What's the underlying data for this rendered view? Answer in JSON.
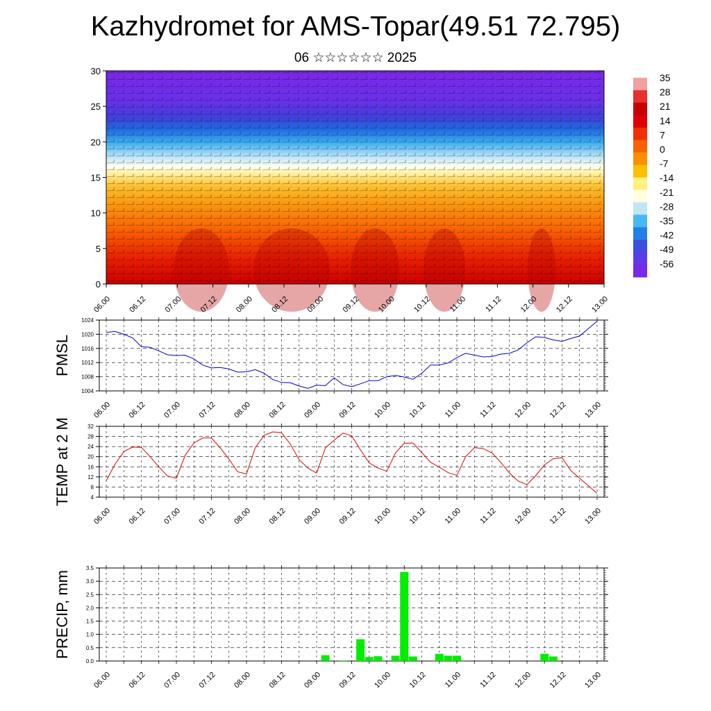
{
  "title": "Kazhydromet for AMS-Topar(49.51 72.795)",
  "subtitle": "06 ☆☆☆☆☆☆ 2025",
  "chart_data": [
    {
      "type": "heatmap",
      "description_of_fill": "temperature cross-section with wind barbs",
      "y_ticks": [
        "0",
        "5",
        "10",
        "15",
        "20",
        "25",
        "30"
      ],
      "ylim": [
        0,
        30
      ],
      "x_ticks": [
        "06.00",
        "06.12",
        "07.00",
        "07.12",
        "08.00",
        "08.12",
        "09.00",
        "09.12",
        "10.00",
        "10.12",
        "11.00",
        "11.12",
        "12.00",
        "12.12",
        "13.00"
      ],
      "colorbar_labels": [
        "35",
        "28",
        "21",
        "14",
        "7",
        "0",
        "-7",
        "-14",
        "-21",
        "-28",
        "-35",
        "-42",
        "-49",
        "-56"
      ],
      "colorbar_colors": [
        "#f0a0a0",
        "#e83030",
        "#c80000",
        "#e00000",
        "#f03000",
        "#f86000",
        "#fa9000",
        "#fcc000",
        "#fff080",
        "#ffffe0",
        "#bfe6f5",
        "#48b8f0",
        "#2080e8",
        "#3c50e0",
        "#5a3ce8",
        "#7828e8"
      ]
    },
    {
      "type": "line",
      "ylabel": "PMSL",
      "ylim": [
        1004,
        1024
      ],
      "y_ticks": [
        "1004",
        "1008",
        "1012",
        "1016",
        "1020",
        "1024"
      ],
      "x_ticks": [
        "06.00",
        "06.12",
        "07.00",
        "07.12",
        "08.00",
        "08.12",
        "09.00",
        "09.12",
        "10.00",
        "10.12",
        "11.00",
        "11.12",
        "12.00",
        "12.12",
        "13.00"
      ],
      "color": "#0000cc",
      "x": [
        0,
        3,
        6,
        9,
        12,
        15,
        18,
        21,
        24,
        27,
        30,
        33,
        36,
        39,
        42,
        45,
        48,
        51,
        54,
        57,
        60,
        63,
        66,
        69,
        72,
        75,
        78,
        81,
        84,
        87,
        90,
        93,
        96,
        99,
        102,
        105,
        108,
        111,
        114,
        117,
        120,
        123,
        126,
        129,
        132,
        135,
        138,
        141,
        144,
        147,
        150,
        153,
        156,
        159,
        162,
        165,
        168
      ],
      "values": [
        1020.5,
        1020.8,
        1020,
        1019,
        1016.5,
        1016.3,
        1015.3,
        1014.2,
        1014,
        1014.1,
        1013,
        1011.3,
        1010.5,
        1010.6,
        1010.2,
        1009.3,
        1009.4,
        1010,
        1009,
        1007.2,
        1006.4,
        1006.3,
        1005.4,
        1004.7,
        1005.6,
        1005.5,
        1007.7,
        1005.8,
        1005.2,
        1006,
        1006.9,
        1006.9,
        1008,
        1008.4,
        1007.9,
        1007.3,
        1009,
        1011.3,
        1011.3,
        1011.9,
        1013.4,
        1014.6,
        1014.1,
        1013.6,
        1013.7,
        1014.4,
        1014.6,
        1015.6,
        1017.6,
        1019.3,
        1019.1,
        1018.4,
        1018,
        1018.8,
        1019.5,
        1021.6,
        1023.7
      ]
    },
    {
      "type": "line",
      "ylabel": "TEMP at 2 M",
      "ylim": [
        4,
        32
      ],
      "y_ticks": [
        "4",
        "8",
        "12",
        "16",
        "20",
        "24",
        "28",
        "32"
      ],
      "x_ticks": [
        "06.00",
        "06.12",
        "07.00",
        "07.12",
        "08.00",
        "08.12",
        "09.00",
        "09.12",
        "10.00",
        "10.12",
        "11.00",
        "11.12",
        "12.00",
        "12.12",
        "13.00"
      ],
      "color": "#dd0000",
      "x": [
        0,
        3,
        6,
        9,
        12,
        15,
        18,
        21,
        24,
        27,
        30,
        33,
        36,
        39,
        42,
        45,
        48,
        51,
        54,
        57,
        60,
        63,
        66,
        69,
        72,
        75,
        78,
        81,
        84,
        87,
        90,
        93,
        96,
        99,
        102,
        105,
        108,
        111,
        114,
        117,
        120,
        123,
        126,
        129,
        132,
        135,
        138,
        141,
        144,
        147,
        150,
        153,
        156,
        159,
        162,
        165,
        168
      ],
      "values": [
        10.5,
        17,
        22,
        23.8,
        23.7,
        20,
        16,
        12.3,
        11.5,
        20.5,
        25.4,
        27.4,
        27.4,
        23.5,
        19,
        14,
        13.2,
        23.5,
        28.5,
        29.8,
        29.5,
        25,
        18.8,
        15.5,
        13.5,
        23.5,
        26.5,
        29.3,
        28.3,
        22.7,
        17.5,
        15.5,
        14.2,
        21.5,
        25.3,
        25.4,
        21.6,
        17.8,
        15.8,
        13.7,
        12.6,
        20,
        23.6,
        23.2,
        21.5,
        17.8,
        13.5,
        10.3,
        9,
        12.5,
        16.8,
        19.2,
        19.6,
        14.5,
        11.5,
        8.5,
        5.5
      ]
    },
    {
      "type": "bar",
      "ylabel": "PRECIP, mm",
      "ylim": [
        0,
        3.5
      ],
      "y_ticks": [
        "0.0",
        "0.5",
        "1.0",
        "1.5",
        "2.0",
        "2.5",
        "3.0",
        "3.5"
      ],
      "x_ticks": [
        "06.00",
        "06.12",
        "07.00",
        "07.12",
        "08.00",
        "08.12",
        "09.00",
        "09.12",
        "10.00",
        "10.12",
        "11.00",
        "11.12",
        "12.00",
        "12.12",
        "13.00"
      ],
      "color": "#00ee00",
      "x": [
        75,
        81,
        87,
        90,
        93,
        99,
        102,
        105,
        114,
        117,
        120,
        150,
        153
      ],
      "values": [
        0.22,
        0.02,
        0.82,
        0.15,
        0.18,
        0.2,
        3.35,
        0.17,
        0.27,
        0.2,
        0.2,
        0.27,
        0.17
      ]
    }
  ]
}
